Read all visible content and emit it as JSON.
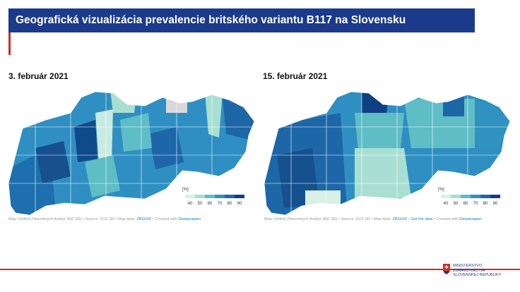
{
  "header": {
    "title": "Geografická vizualizácia prevalencie britského variantu B117 na Slovensku"
  },
  "panels": [
    {
      "title": "3. február 2021",
      "legend": {
        "unit": "[%]",
        "ticks": [
          40,
          50,
          60,
          70,
          80,
          90
        ],
        "colors": [
          "#d8f1e4",
          "#a9dfd2",
          "#5fbdc6",
          "#2f92c0",
          "#1d67a8",
          "#0f3f84"
        ]
      },
      "source": [
        {
          "text": "Map: Inštitút Zdravotných Analýz (MZ SR) • Source: ÚVZ SR • Map data: ",
          "link": false
        },
        {
          "text": "ZBGIS®",
          "link": true
        },
        {
          "text": " • Created with ",
          "link": false
        },
        {
          "text": "Datawrapper",
          "link": true
        }
      ]
    },
    {
      "title": "15. február 2021",
      "legend": {
        "unit": "[%]",
        "ticks": [
          40,
          50,
          60,
          70,
          80,
          90
        ],
        "colors": [
          "#d8f1e4",
          "#a9dfd2",
          "#5fbdc6",
          "#2f92c0",
          "#1d67a8",
          "#0f3f84"
        ]
      },
      "source": [
        {
          "text": "Map: Inštitút Zdravotných Analýz (MZ SR) • Source: ÚVZ SR • Map data: ",
          "link": false
        },
        {
          "text": "ZBGIS®",
          "link": true
        },
        {
          "text": " • ",
          "link": false
        },
        {
          "text": "Get the data",
          "link": true
        },
        {
          "text": " • Created with ",
          "link": false
        },
        {
          "text": "Datawrapper",
          "link": true
        }
      ]
    }
  ],
  "logo": {
    "lines": [
      "MINISTERSTVO",
      "ZDRAVOTNÍCTVA",
      "SLOVENSKEJ REPUBLIKY"
    ]
  }
}
